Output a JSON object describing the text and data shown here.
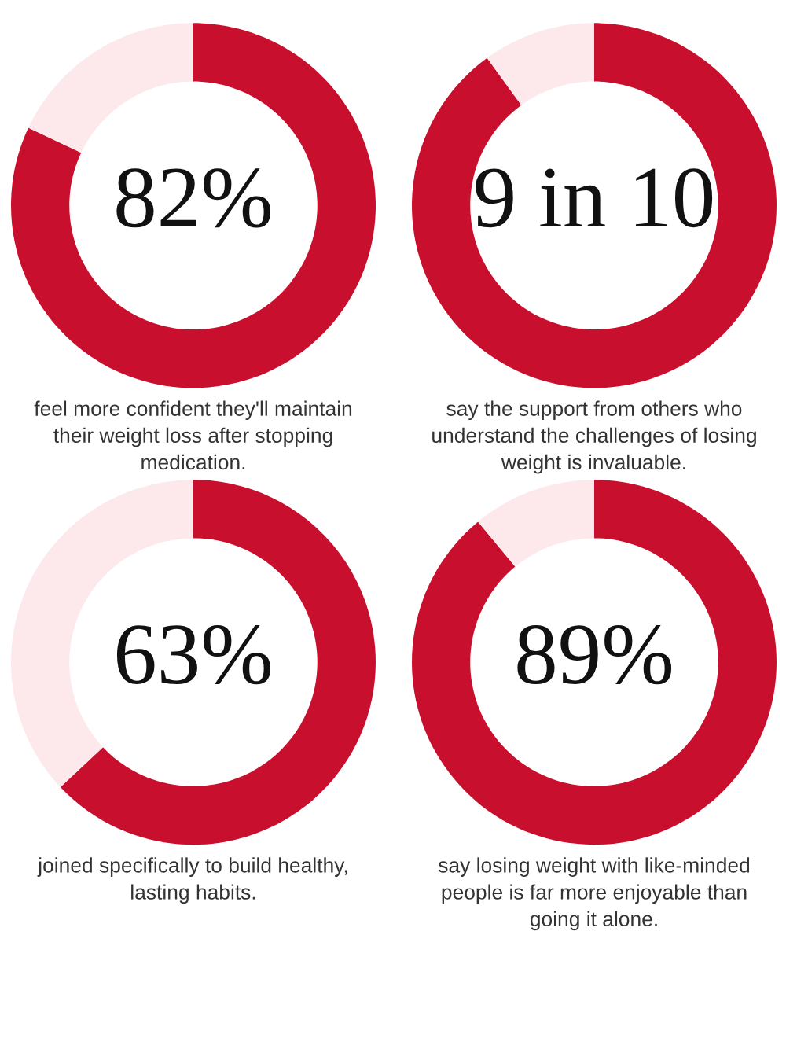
{
  "chart_data": [
    {
      "type": "donut",
      "categories": [
        null,
        null
      ],
      "values": [
        82,
        18
      ],
      "colors": [
        "#c8102e",
        "#fde8ec"
      ],
      "annotations": [
        "82%",
        "feel more confident they'll maintain\ntheir weight loss after stopping\nmedication."
      ]
    },
    {
      "type": "donut",
      "categories": [
        null,
        null
      ],
      "values": [
        90,
        10
      ],
      "colors": [
        "#c8102e",
        "#fde8ec"
      ],
      "annotations": [
        "9 in 10",
        "say the support from others who\nunderstand the challenges of losing\nweight is invaluable."
      ]
    },
    {
      "type": "donut",
      "categories": [
        null,
        null
      ],
      "values": [
        63,
        37
      ],
      "colors": [
        "#c8102e",
        "#fde8ec"
      ],
      "annotations": [
        "63%",
        "joined specifically to build healthy,\nlasting habits."
      ]
    },
    {
      "type": "donut",
      "categories": [
        null,
        null
      ],
      "values": [
        89,
        11
      ],
      "colors": [
        "#c8102e",
        "#fde8ec"
      ],
      "annotations": [
        "89%",
        "say losing weight with like-minded\npeople is far more enjoyable than\ngoing it alone."
      ]
    }
  ]
}
